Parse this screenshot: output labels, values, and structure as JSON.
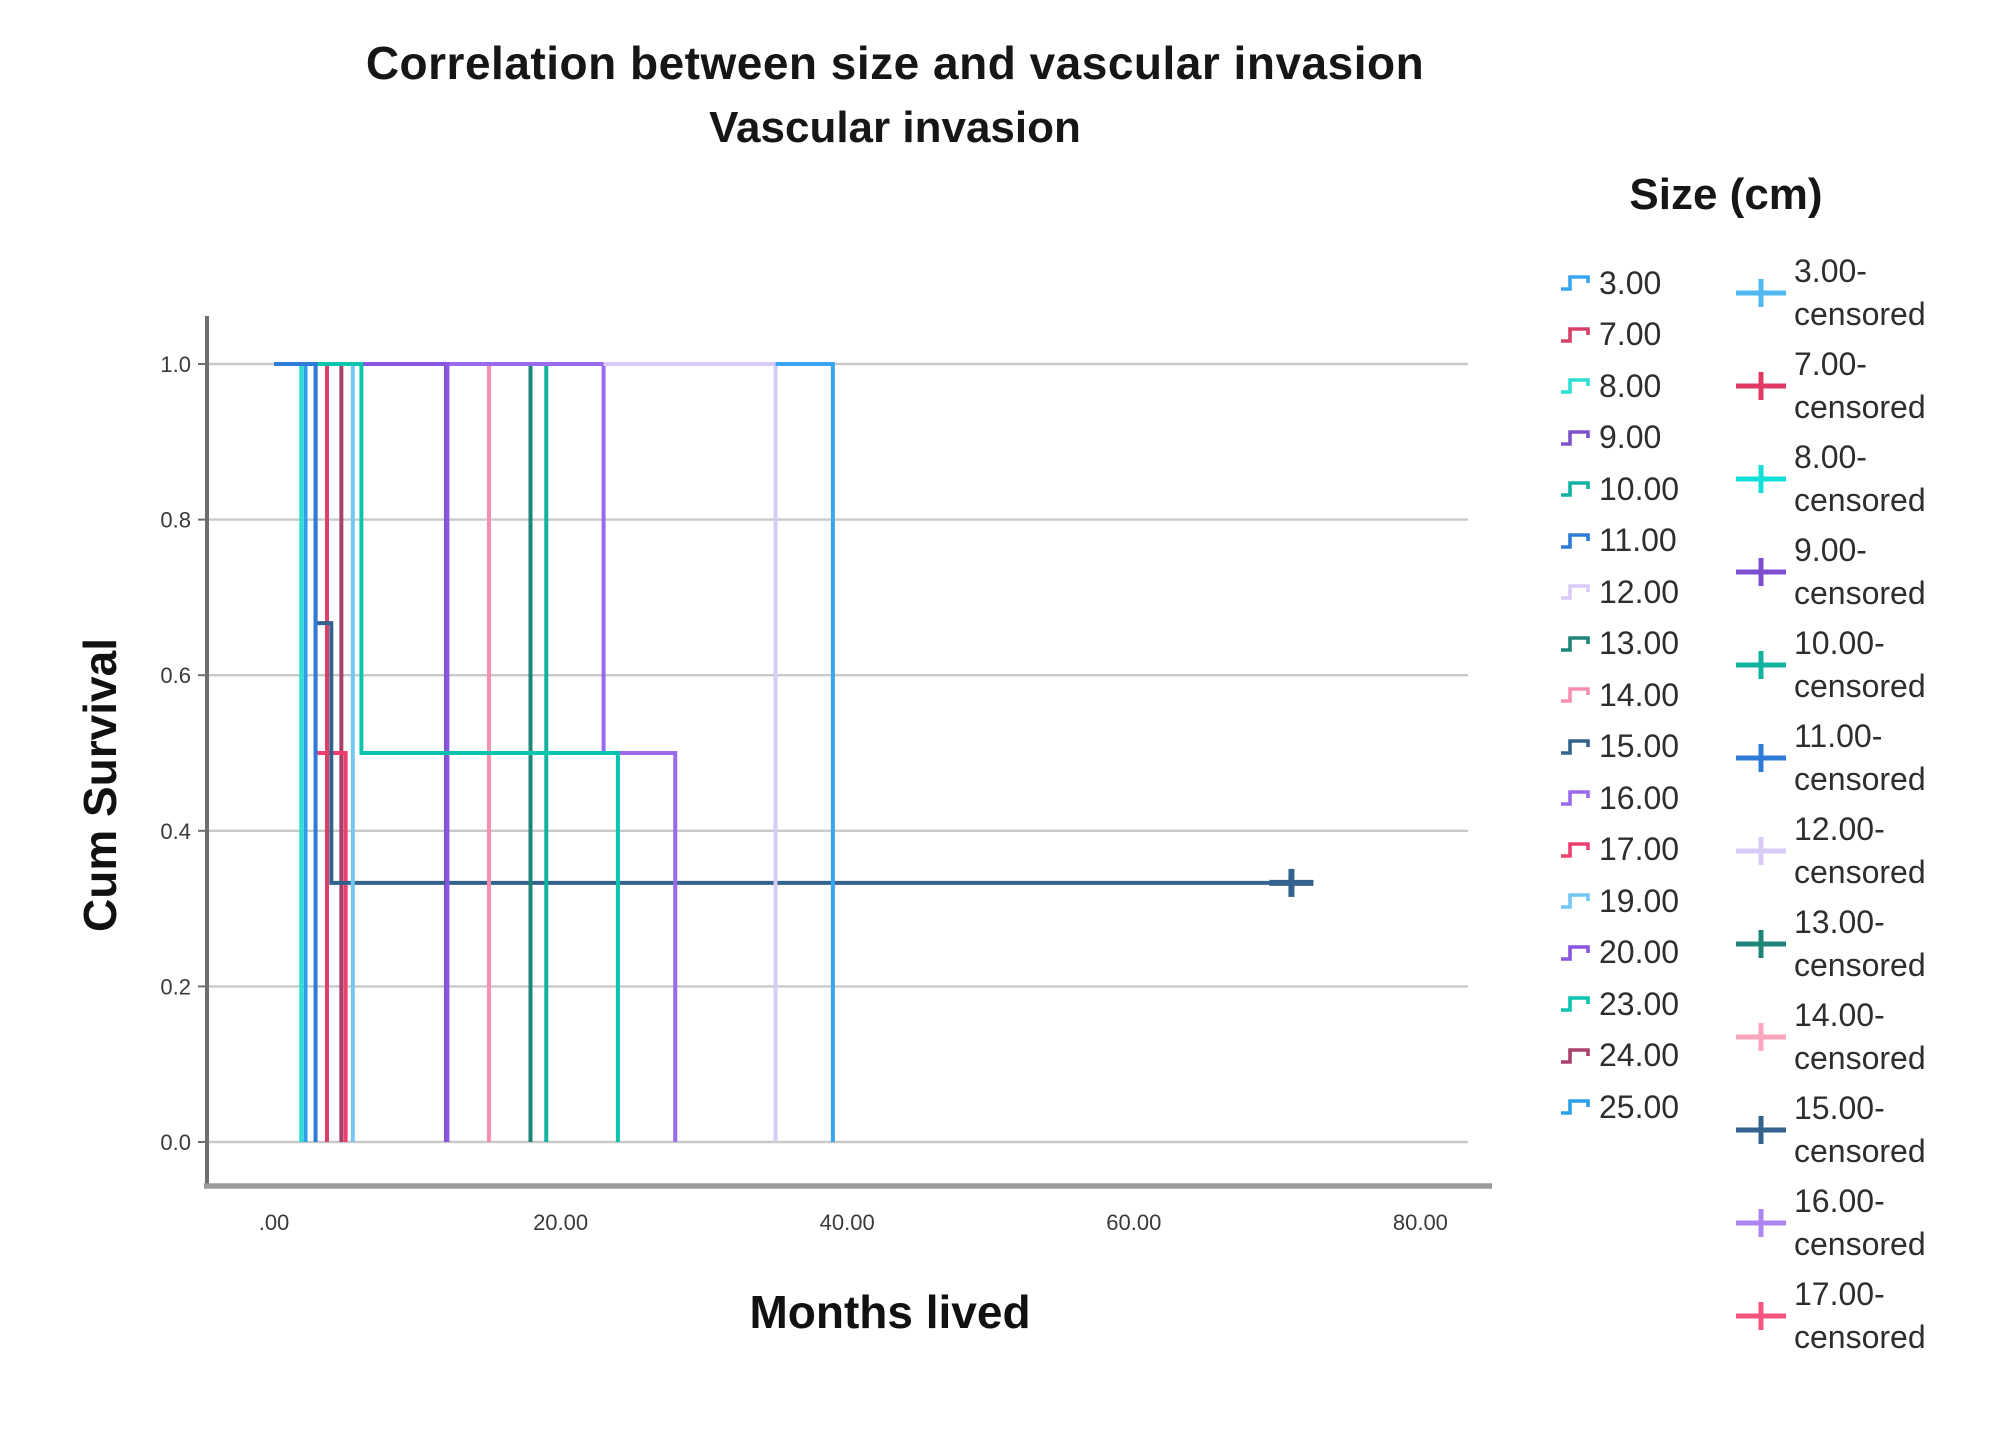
{
  "figure": {
    "title_line1": "Correlation between size and vascular invasion",
    "title_line2": "Vascular invasion",
    "y_axis_title": "Cum Survival",
    "x_axis_title": "Months lived",
    "legend_title": "Size (cm)"
  },
  "chart_data": {
    "type": "line",
    "subtype": "kaplan-meier-step-survival",
    "title": "Correlation between size and vascular invasion",
    "subtitle": "Vascular invasion",
    "xlabel": "Months lived",
    "ylabel": "Cum Survival",
    "legend_position": "right",
    "grid": "horizontal-only",
    "xlim": [
      -4.5,
      84
    ],
    "ylim": [
      -0.05,
      1.06
    ],
    "x_ticks": [
      {
        "value": 0,
        "label": ".00"
      },
      {
        "value": 20,
        "label": "20.00"
      },
      {
        "value": 40,
        "label": "40.00"
      },
      {
        "value": 60,
        "label": "60.00"
      },
      {
        "value": 80,
        "label": "80.00"
      }
    ],
    "y_ticks": [
      {
        "value": 1.0,
        "label": "1.0"
      },
      {
        "value": 0.8,
        "label": "0.8"
      },
      {
        "value": 0.6,
        "label": "0.6"
      },
      {
        "value": 0.4,
        "label": "0.4"
      },
      {
        "value": 0.2,
        "label": "0.2"
      },
      {
        "value": 0.0,
        "label": "0.0"
      }
    ],
    "series_note": "Step survival curves, x = months lived, y = cumulative survival; draw order bottom-to-top",
    "series": [
      {
        "name": "9.00",
        "color": "#7E52C8",
        "points": [
          [
            0,
            1
          ],
          [
            12,
            1
          ],
          [
            12,
            0
          ]
        ]
      },
      {
        "name": "7.00",
        "color": "#D84068",
        "points": [
          [
            0,
            1
          ],
          [
            3.7,
            1
          ],
          [
            3.7,
            0
          ]
        ]
      },
      {
        "name": "24.00",
        "color": "#A8426C",
        "points": [
          [
            0,
            1
          ],
          [
            4.7,
            1
          ],
          [
            4.7,
            0
          ]
        ]
      },
      {
        "name": "17.00",
        "color": "#EE3F6F",
        "points": [
          [
            0,
            1
          ],
          [
            2.9,
            1
          ],
          [
            2.9,
            0.5
          ],
          [
            5,
            0.5
          ],
          [
            5,
            0
          ]
        ]
      },
      {
        "name": "15.00",
        "color": "#33638C",
        "points": [
          [
            0,
            1
          ],
          [
            2.9,
            1
          ],
          [
            2.9,
            0.667
          ],
          [
            4,
            0.667
          ],
          [
            4,
            0.333
          ],
          [
            71,
            0.333
          ]
        ]
      },
      {
        "name": "14.00",
        "color": "#F98FB0",
        "points": [
          [
            0,
            1
          ],
          [
            15,
            1
          ],
          [
            15,
            0
          ]
        ]
      },
      {
        "name": "13.00",
        "color": "#1F8579",
        "points": [
          [
            0,
            1
          ],
          [
            17.9,
            1
          ],
          [
            17.9,
            0
          ]
        ]
      },
      {
        "name": "10.00",
        "color": "#12B2A2",
        "points": [
          [
            0,
            1
          ],
          [
            19,
            1
          ],
          [
            19,
            0
          ]
        ]
      },
      {
        "name": "8.00",
        "color": "#2BDFD4",
        "points": [
          [
            0,
            1
          ],
          [
            1.9,
            1
          ],
          [
            1.9,
            0
          ]
        ]
      },
      {
        "name": "25.00",
        "color": "#2B9FE8",
        "points": [
          [
            0,
            1
          ],
          [
            2.2,
            1
          ],
          [
            2.2,
            0
          ]
        ]
      },
      {
        "name": "19.00",
        "color": "#74C6F4",
        "points": [
          [
            0,
            1
          ],
          [
            5.5,
            1
          ],
          [
            5.5,
            0
          ]
        ]
      },
      {
        "name": "16.00",
        "color": "#9A6AEA",
        "points": [
          [
            11.8,
            1
          ],
          [
            23,
            1
          ],
          [
            23,
            0.5
          ],
          [
            28,
            0.5
          ],
          [
            28,
            0
          ]
        ]
      },
      {
        "name": "12.00",
        "color": "#D8CBF8",
        "points": [
          [
            23,
            1
          ],
          [
            35,
            1
          ],
          [
            35,
            0
          ]
        ]
      },
      {
        "name": "3.00",
        "color": "#38A5F0",
        "points": [
          [
            35,
            1
          ],
          [
            39,
            1
          ],
          [
            39,
            0
          ]
        ]
      },
      {
        "name": "20.00",
        "color": "#8A55E0",
        "points": [
          [
            2.9,
            1
          ],
          [
            12.1,
            1
          ],
          [
            12.1,
            0
          ]
        ]
      },
      {
        "name": "23.00",
        "color": "#0BC4AE",
        "points": [
          [
            0,
            1
          ],
          [
            6.1,
            1
          ],
          [
            6.1,
            0.5
          ],
          [
            24,
            0.5
          ],
          [
            24,
            0
          ]
        ]
      },
      {
        "name": "11.00",
        "color": "#2E7BD8",
        "points": [
          [
            0,
            1
          ],
          [
            2.9,
            1
          ],
          [
            2.9,
            0
          ]
        ]
      }
    ],
    "censored_markers": [
      {
        "series": "15.00",
        "month": 71,
        "survival": 0.333,
        "color": "#33638C"
      }
    ],
    "legend": {
      "title": "Size (cm)",
      "items": [
        {
          "label": "3.00",
          "color": "#38A5F0"
        },
        {
          "label": "7.00",
          "color": "#D84068"
        },
        {
          "label": "8.00",
          "color": "#2BDFD4"
        },
        {
          "label": "9.00",
          "color": "#7E52C8"
        },
        {
          "label": "10.00",
          "color": "#12B2A2"
        },
        {
          "label": "11.00",
          "color": "#2E7BD8"
        },
        {
          "label": "12.00",
          "color": "#D8CBF8"
        },
        {
          "label": "13.00",
          "color": "#1F8579"
        },
        {
          "label": "14.00",
          "color": "#F98FB0"
        },
        {
          "label": "15.00",
          "color": "#33638C"
        },
        {
          "label": "16.00",
          "color": "#9A6AEA"
        },
        {
          "label": "17.00",
          "color": "#EE3F6F"
        },
        {
          "label": "19.00",
          "color": "#74C6F4"
        },
        {
          "label": "20.00",
          "color": "#8A55E0"
        },
        {
          "label": "23.00",
          "color": "#0BC4AE"
        },
        {
          "label": "24.00",
          "color": "#A8426C"
        },
        {
          "label": "25.00",
          "color": "#2B9FE8"
        }
      ],
      "censored_items": [
        {
          "line1": "3.00-",
          "line2": "censored",
          "color": "#4FB8F0"
        },
        {
          "line1": "7.00-",
          "line2": "censored",
          "color": "#E03A64"
        },
        {
          "line1": "8.00-",
          "line2": "censored",
          "color": "#12E0D8"
        },
        {
          "line1": "9.00-",
          "line2": "censored",
          "color": "#7E4FD0"
        },
        {
          "line1": "10.00-",
          "line2": "censored",
          "color": "#10B2A0"
        },
        {
          "line1": "11.00-",
          "line2": "censored",
          "color": "#2E7BD8"
        },
        {
          "line1": "12.00-",
          "line2": "censored",
          "color": "#D8CBF8"
        },
        {
          "line1": "13.00-",
          "line2": "censored",
          "color": "#1F8579"
        },
        {
          "line1": "14.00-",
          "line2": "censored",
          "color": "#F9A6BE"
        },
        {
          "line1": "15.00-",
          "line2": "censored",
          "color": "#33638C"
        },
        {
          "line1": "16.00-",
          "line2": "censored",
          "color": "#AE85F2"
        },
        {
          "line1": "17.00-",
          "line2": "censored",
          "color": "#F4547E"
        }
      ]
    }
  }
}
